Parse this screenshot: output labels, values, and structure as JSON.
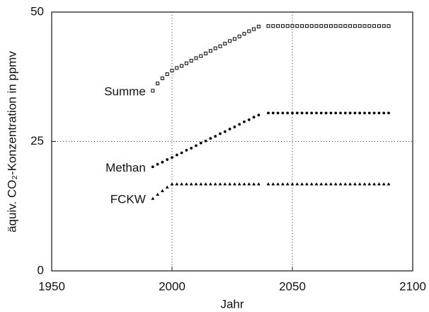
{
  "chart_data": {
    "type": "scatter",
    "xlabel": "Jahr",
    "ylabel": "äquiv. CO₂-Konzentration in ppmv",
    "xlim": [
      1950,
      2100
    ],
    "xticks": [
      1950,
      2000,
      2050,
      2100
    ],
    "ylim": [
      0,
      50
    ],
    "yticks": [
      0,
      25,
      50
    ],
    "grid": true,
    "series": [
      {
        "name": "Summe",
        "color": "#000000",
        "marker": "square",
        "x": [
          1992,
          1994,
          1996,
          1998,
          2000,
          2002,
          2004,
          2006,
          2008,
          2010,
          2012,
          2014,
          2016,
          2018,
          2020,
          2022,
          2024,
          2026,
          2028,
          2030,
          2032,
          2034,
          2036,
          2040,
          2042,
          2044,
          2046,
          2048,
          2050,
          2052,
          2054,
          2056,
          2058,
          2060,
          2062,
          2064,
          2066,
          2068,
          2070,
          2072,
          2074,
          2076,
          2078,
          2080,
          2082,
          2084,
          2086,
          2088,
          2090
        ],
        "values": [
          34.8,
          36.2,
          37.2,
          38.0,
          38.7,
          39.2,
          39.6,
          40.1,
          40.6,
          41.1,
          41.5,
          42.0,
          42.5,
          43.0,
          43.4,
          43.9,
          44.4,
          44.8,
          45.3,
          45.8,
          46.3,
          46.7,
          47.2,
          47.3,
          47.3,
          47.3,
          47.3,
          47.3,
          47.3,
          47.3,
          47.3,
          47.3,
          47.3,
          47.3,
          47.3,
          47.3,
          47.3,
          47.3,
          47.3,
          47.3,
          47.3,
          47.3,
          47.3,
          47.3,
          47.3,
          47.3,
          47.3,
          47.3,
          47.3
        ]
      },
      {
        "name": "Methan",
        "color": "#000000",
        "marker": "circle",
        "x": [
          1992,
          1994,
          1996,
          1998,
          2000,
          2002,
          2004,
          2006,
          2008,
          2010,
          2012,
          2014,
          2016,
          2018,
          2020,
          2022,
          2024,
          2026,
          2028,
          2030,
          2032,
          2034,
          2036,
          2040,
          2042,
          2044,
          2046,
          2048,
          2050,
          2052,
          2054,
          2056,
          2058,
          2060,
          2062,
          2064,
          2066,
          2068,
          2070,
          2072,
          2074,
          2076,
          2078,
          2080,
          2082,
          2084,
          2086,
          2088,
          2090
        ],
        "values": [
          20.1,
          20.6,
          21.0,
          21.5,
          21.9,
          22.4,
          22.8,
          23.3,
          23.7,
          24.2,
          24.7,
          25.1,
          25.6,
          26.0,
          26.5,
          26.9,
          27.4,
          27.8,
          28.3,
          28.8,
          29.2,
          29.7,
          30.1,
          30.5,
          30.5,
          30.5,
          30.5,
          30.5,
          30.5,
          30.5,
          30.5,
          30.5,
          30.5,
          30.5,
          30.5,
          30.5,
          30.5,
          30.5,
          30.5,
          30.5,
          30.5,
          30.5,
          30.5,
          30.5,
          30.5,
          30.5,
          30.5,
          30.5,
          30.5
        ]
      },
      {
        "name": "FCKW",
        "color": "#000000",
        "marker": "triangle",
        "x": [
          1992,
          1994,
          1996,
          1998,
          2000,
          2002,
          2004,
          2006,
          2008,
          2010,
          2012,
          2014,
          2016,
          2018,
          2020,
          2022,
          2024,
          2026,
          2028,
          2030,
          2032,
          2034,
          2036,
          2040,
          2042,
          2044,
          2046,
          2048,
          2050,
          2052,
          2054,
          2056,
          2058,
          2060,
          2062,
          2064,
          2066,
          2068,
          2070,
          2072,
          2074,
          2076,
          2078,
          2080,
          2082,
          2084,
          2086,
          2088,
          2090
        ],
        "values": [
          14.0,
          14.8,
          15.5,
          16.2,
          16.8,
          16.8,
          16.8,
          16.8,
          16.8,
          16.8,
          16.8,
          16.8,
          16.8,
          16.8,
          16.8,
          16.8,
          16.8,
          16.8,
          16.8,
          16.8,
          16.8,
          16.8,
          16.8,
          16.8,
          16.8,
          16.8,
          16.8,
          16.8,
          16.8,
          16.8,
          16.8,
          16.8,
          16.8,
          16.8,
          16.8,
          16.8,
          16.8,
          16.8,
          16.8,
          16.8,
          16.8,
          16.8,
          16.8,
          16.8,
          16.8,
          16.8,
          16.8,
          16.8,
          16.8
        ]
      }
    ]
  }
}
